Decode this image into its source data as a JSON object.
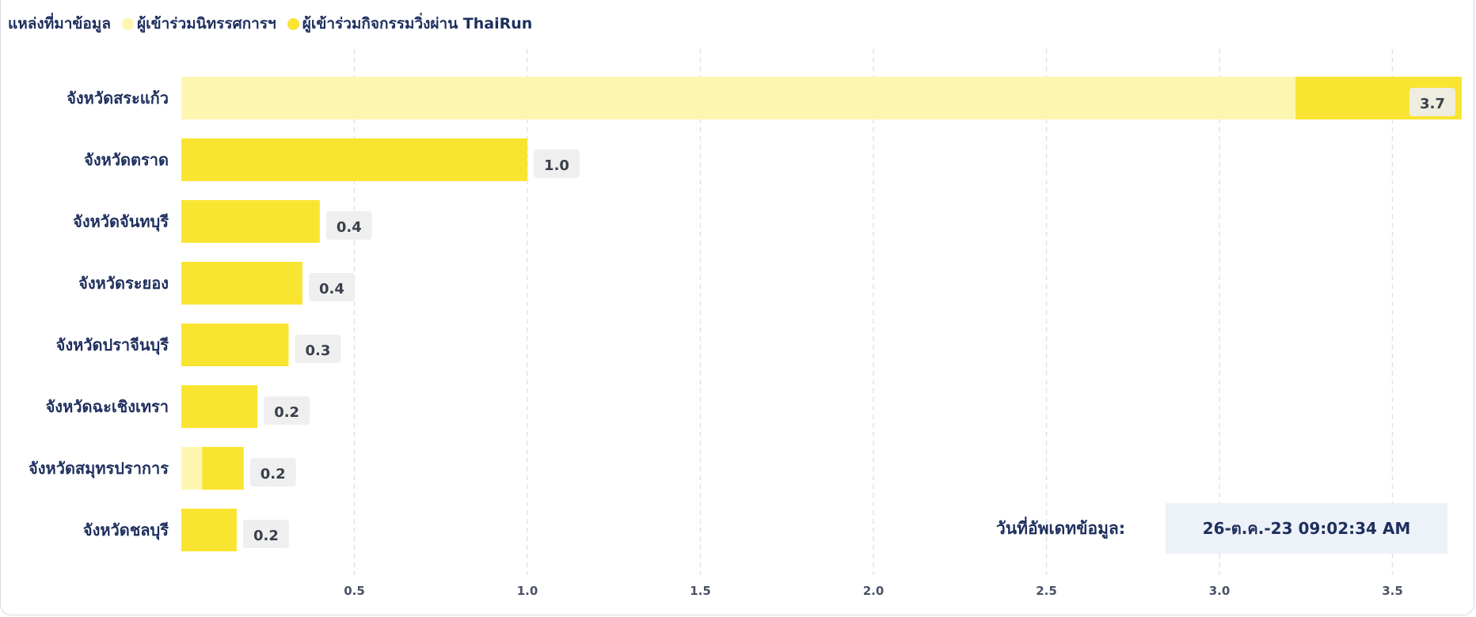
{
  "legend": {
    "title": "แหล่งที่มาข้อมูล",
    "items": [
      {
        "label": "ผู้เข้าร่วมนิทรรศการฯ",
        "color": "#fdf6b0"
      },
      {
        "label": "ผู้เข้าร่วมกิจกรรมวิ่งผ่าน ThaiRun",
        "color": "#f9e432"
      }
    ]
  },
  "update": {
    "label": "วันที่อัพเดทข้อมูล:",
    "value": "26-ต.ค.-23 09:02:34 AM"
  },
  "chart_data": {
    "type": "bar",
    "orientation": "horizontal",
    "stacked": true,
    "categories": [
      "จังหวัดสระแก้ว",
      "จังหวัดตราด",
      "จังหวัดจันทบุรี",
      "จังหวัดระยอง",
      "จังหวัดปราจีนบุรี",
      "จังหวัดฉะเชิงเทรา",
      "จังหวัดสมุทรปราการ",
      "จังหวัดชลบุรี"
    ],
    "series": [
      {
        "name": "ผู้เข้าร่วมนิทรรศการฯ",
        "color": "#fdf6b0",
        "values": [
          3.22,
          0.0,
          0.0,
          0.0,
          0.0,
          0.0,
          0.06,
          0.0
        ]
      },
      {
        "name": "ผู้เข้าร่วมกิจกรรมวิ่งผ่าน ThaiRun",
        "color": "#f9e432",
        "values": [
          0.48,
          1.0,
          0.4,
          0.35,
          0.31,
          0.22,
          0.12,
          0.16
        ]
      }
    ],
    "value_labels": [
      "3.7",
      "1.0",
      "0.4",
      "0.4",
      "0.3",
      "0.2",
      "0.2",
      "0.2"
    ],
    "xticks": [
      0.5,
      1.0,
      1.5,
      2.0,
      2.5,
      3.0,
      3.5
    ],
    "xtick_labels": [
      "0.5",
      "1.0",
      "1.5",
      "2.0",
      "2.5",
      "3.0",
      "3.5"
    ],
    "xlim": [
      0,
      3.7
    ],
    "grid": "vertical-dashed",
    "legend_position": "top-left"
  }
}
